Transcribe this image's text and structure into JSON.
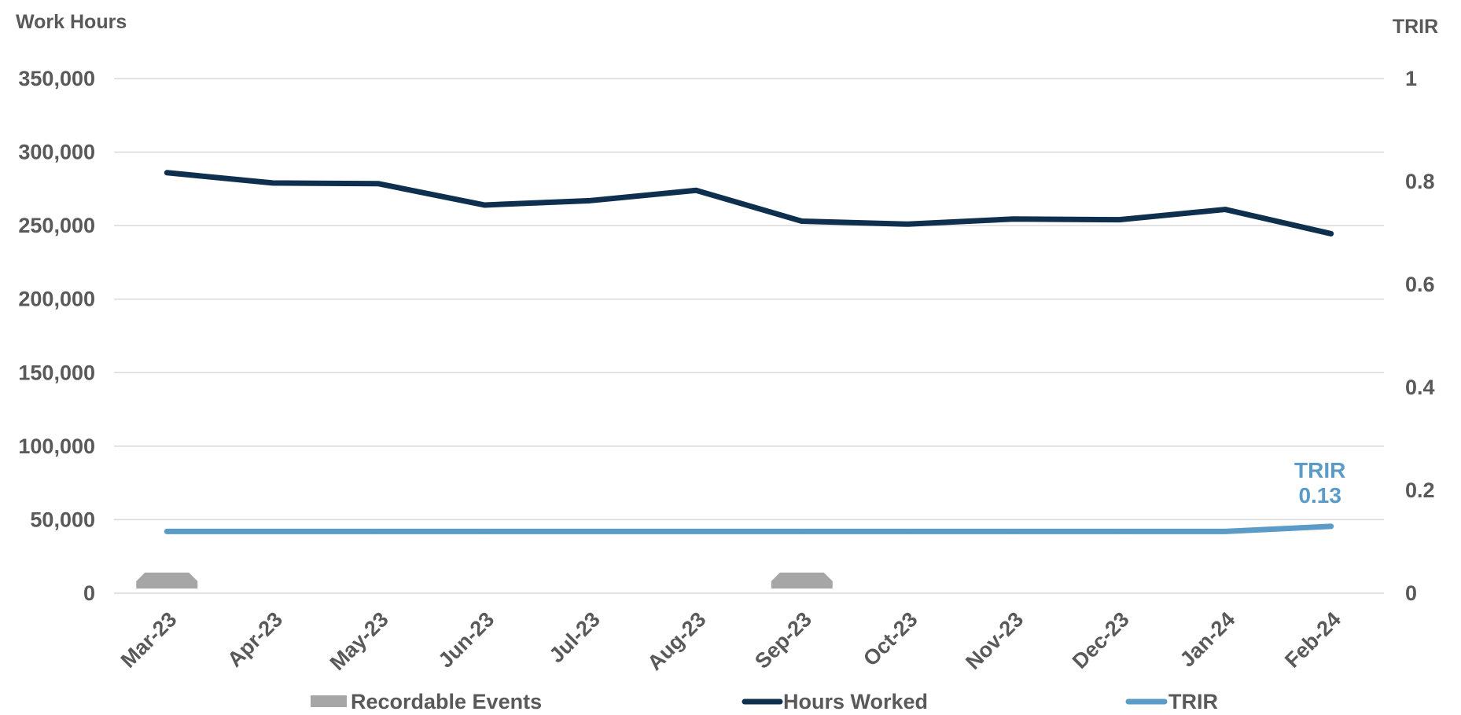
{
  "chart_data": {
    "type": "combo",
    "categories": [
      "Mar-23",
      "Apr-23",
      "May-23",
      "Jun-23",
      "Jul-23",
      "Aug-23",
      "Sep-23",
      "Oct-23",
      "Nov-23",
      "Dec-23",
      "Jan-24",
      "Feb-24"
    ],
    "left_axis": {
      "title": "Work Hours",
      "range": [
        0,
        350000
      ],
      "ticks": [
        0,
        50000,
        100000,
        150000,
        200000,
        250000,
        300000,
        350000
      ],
      "tick_labels": [
        "0",
        "50,000",
        "100,000",
        "150,000",
        "200,000",
        "250,000",
        "300,000",
        "350,000"
      ]
    },
    "right_axis": {
      "title": "TRIR",
      "range": [
        0,
        1
      ],
      "ticks": [
        0,
        0.2,
        0.4,
        0.6,
        0.8,
        1
      ],
      "tick_labels": [
        "0",
        "0.2",
        "0.4",
        "0.6",
        "0.8",
        "1"
      ]
    },
    "series": [
      {
        "name": "Recordable Events",
        "type": "bar",
        "axis": "right",
        "color": "#a6a6a6",
        "values": [
          1,
          0,
          0,
          0,
          0,
          0,
          1,
          0,
          0,
          0,
          0,
          0
        ],
        "bar_unit": 0.04
      },
      {
        "name": "Hours Worked",
        "type": "line",
        "axis": "left",
        "color": "#0e2f4d",
        "values": [
          286000,
          279000,
          278500,
          264000,
          267000,
          274000,
          253000,
          251000,
          254500,
          254000,
          261000,
          244500
        ]
      },
      {
        "name": "TRIR",
        "type": "line",
        "axis": "right",
        "color": "#5b9bc8",
        "values": [
          0.12,
          0.12,
          0.12,
          0.12,
          0.12,
          0.12,
          0.12,
          0.12,
          0.12,
          0.12,
          0.12,
          0.13
        ]
      }
    ],
    "annotation": {
      "label": "TRIR",
      "value_text": "0.13",
      "series": "TRIR",
      "category": "Feb-24"
    },
    "legend": {
      "position": "bottom",
      "entries": [
        "Recordable Events",
        "Hours Worked",
        "TRIR"
      ]
    },
    "grid": true
  }
}
